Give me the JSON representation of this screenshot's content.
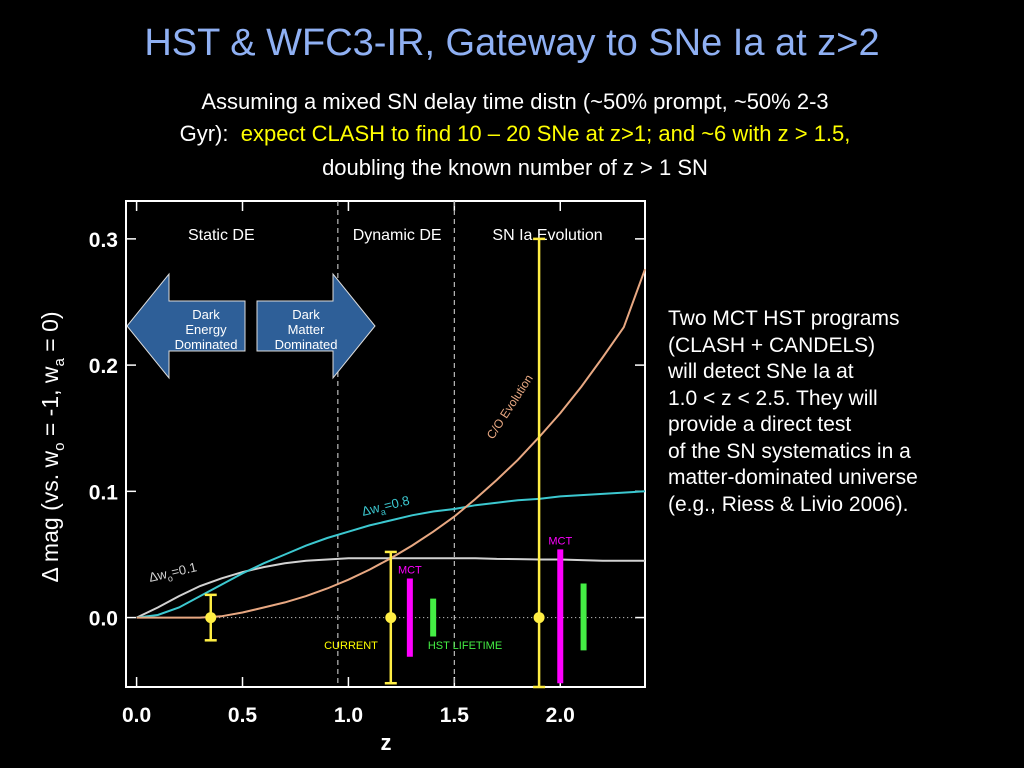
{
  "title": "HST & WFC3-IR, Gateway to SNe Ia at z>2",
  "subtitle": {
    "line1": "Assuming a mixed SN delay time distn (~50% prompt, ~50% 2-3",
    "line2_white": "Gyr):",
    "line2_yellow": "expect CLASH to find 10 – 20 SNe at z>1; and ~6 with z > 1.5,",
    "line3": "doubling the known number of z > 1 SN"
  },
  "side_text": [
    "Two MCT HST programs",
    "(CLASH + CANDELS)",
    "will detect SNe Ia at",
    "1.0 < z < 2.5. They will",
    "provide a direct test",
    "of the SN systematics in a",
    "matter-dominated universe",
    "(e.g., Riess & Livio 2006)."
  ],
  "colors": {
    "background": "#000000",
    "title": "#8fb0f3",
    "highlight": "#ffff00",
    "arrow": "#2e5f98",
    "cyan": "#3cc8d0",
    "tan": "#e8a882",
    "gray": "#d2d2d2",
    "magenta": "#ff00ff",
    "green": "#44ee44"
  },
  "chart_data": {
    "type": "line",
    "xlabel": "z",
    "ylabel": "Δ mag (vs. wo = -1, wa = 0)",
    "ylabel_parts": {
      "prefix": "Δ mag (vs. w",
      "sub1": "o",
      "mid": " = -1, w",
      "sub2": "a",
      "suffix": " = 0)"
    },
    "xlim": [
      -0.05,
      2.4
    ],
    "ylim": [
      -0.055,
      0.33
    ],
    "x_ticks": [
      0.0,
      0.5,
      1.0,
      1.5,
      2.0
    ],
    "x_tick_labels": [
      "0.0",
      "0.5",
      "1.0",
      "1.5",
      "2.0"
    ],
    "y_ticks": [
      0.0,
      0.1,
      0.2,
      0.3
    ],
    "y_tick_labels": [
      "0.0",
      "0.1",
      "0.2",
      "0.3"
    ],
    "regions": [
      {
        "label": "Static DE",
        "x": 0.4
      },
      {
        "label": "Dynamic DE",
        "x": 1.23
      },
      {
        "label": "SN Ia  Evolution",
        "x": 1.94
      }
    ],
    "boundaries": [
      0.95,
      1.5
    ],
    "arrows": [
      {
        "lines": [
          "Dark",
          "Energy",
          "Dominated"
        ],
        "direction": "left"
      },
      {
        "lines": [
          "Dark",
          "Matter",
          "Dominated"
        ],
        "direction": "right"
      }
    ],
    "series": [
      {
        "name": "Δwo=0.1",
        "label_prefix": "Δw",
        "label_sub": "o",
        "label_suffix": "=0.1",
        "color": "#d2d2d2",
        "x": [
          0,
          0.1,
          0.2,
          0.3,
          0.4,
          0.5,
          0.6,
          0.7,
          0.8,
          0.9,
          1.0,
          1.1,
          1.2,
          1.3,
          1.4,
          1.5,
          1.6,
          1.7,
          1.8,
          1.9,
          2.0,
          2.2,
          2.4
        ],
        "y": [
          0,
          0.008,
          0.017,
          0.025,
          0.031,
          0.036,
          0.04,
          0.043,
          0.045,
          0.046,
          0.047,
          0.047,
          0.047,
          0.047,
          0.047,
          0.047,
          0.047,
          0.0465,
          0.0463,
          0.046,
          0.046,
          0.045,
          0.045
        ]
      },
      {
        "name": "Δwa=0.8",
        "label_prefix": "Δw",
        "label_sub": "a",
        "label_suffix": "=0.8",
        "color": "#3cc8d0",
        "x": [
          0,
          0.1,
          0.2,
          0.3,
          0.4,
          0.5,
          0.6,
          0.7,
          0.8,
          0.9,
          1.0,
          1.1,
          1.2,
          1.3,
          1.4,
          1.5,
          1.6,
          1.7,
          1.8,
          1.9,
          2.0,
          2.2,
          2.4
        ],
        "y": [
          0,
          0.002,
          0.008,
          0.017,
          0.026,
          0.035,
          0.043,
          0.05,
          0.057,
          0.063,
          0.068,
          0.073,
          0.077,
          0.081,
          0.084,
          0.086,
          0.089,
          0.091,
          0.093,
          0.094,
          0.096,
          0.098,
          0.1
        ]
      },
      {
        "name": "C/O Evolution",
        "color": "#e8a882",
        "x": [
          0,
          0.3,
          0.4,
          0.5,
          0.6,
          0.7,
          0.8,
          0.9,
          1.0,
          1.1,
          1.2,
          1.3,
          1.4,
          1.5,
          1.6,
          1.7,
          1.8,
          1.9,
          2.0,
          2.1,
          2.2,
          2.3,
          2.4
        ],
        "y": [
          0,
          0,
          0.001,
          0.004,
          0.008,
          0.012,
          0.017,
          0.023,
          0.03,
          0.038,
          0.047,
          0.057,
          0.068,
          0.08,
          0.094,
          0.109,
          0.125,
          0.143,
          0.162,
          0.183,
          0.206,
          0.23,
          0.276
        ]
      }
    ],
    "zero_line": {
      "y": 0.0,
      "style": "dotted"
    },
    "points": [
      {
        "x": 0.35,
        "y": 0.0,
        "err_low": -0.018,
        "err_high": 0.018,
        "color": "#ffee44"
      },
      {
        "x": 1.2,
        "y": 0.0,
        "err_low": -0.052,
        "err_high": 0.052,
        "color": "#ffee44"
      },
      {
        "x": 1.9,
        "y": 0.0,
        "err_low": -0.055,
        "err_high": 0.3,
        "color": "#ffee44"
      }
    ],
    "bars": [
      {
        "x": 1.29,
        "y0": -0.031,
        "y1": 0.031,
        "color": "#ff00ff",
        "label": "MCT"
      },
      {
        "x": 1.4,
        "y0": -0.015,
        "y1": 0.015,
        "color": "#44ee44"
      },
      {
        "x": 2.0,
        "y0": -0.052,
        "y1": 0.054,
        "color": "#ff00ff",
        "label": "MCT"
      },
      {
        "x": 2.11,
        "y0": -0.026,
        "y1": 0.027,
        "color": "#44ee44"
      }
    ],
    "annotations": [
      "CURRENT",
      "HST LIFETIME"
    ]
  }
}
